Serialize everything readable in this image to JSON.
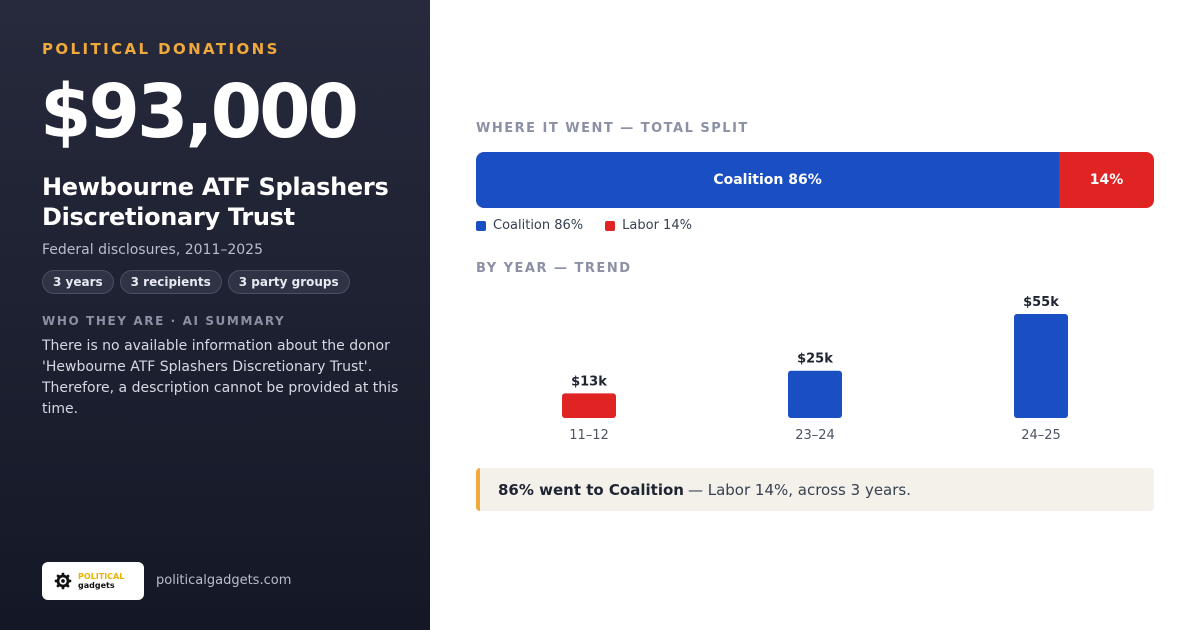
{
  "left": {
    "eyebrow": "POLITICAL DONATIONS",
    "amount": "$93,000",
    "donor_name": "Hewbourne ATF Splashers Discretionary Trust",
    "subtitle": "Federal disclosures, 2011–2025",
    "chips": [
      "3 years",
      "3 recipients",
      "3 party groups"
    ],
    "about_heading": "WHO THEY ARE · AI SUMMARY",
    "about_text": "There is no available information about the donor 'Hewbourne ATF Splashers Discretionary Trust'. Therefore, a description cannot be provided at this time.",
    "logo_line1": "POLITICAL",
    "logo_line2": "gadgets",
    "logo_icon": "gear-icon",
    "site": "politicalgadgets.com"
  },
  "split_heading": "WHERE IT WENT — TOTAL SPLIT",
  "trend_heading": "BY YEAR — TREND",
  "colors": {
    "coalition": "#1a4fc4",
    "labor": "#e02424",
    "accent": "#f2a93b"
  },
  "callout": {
    "strong": "86% went to Coalition",
    "rest": "— Labor 14%, across 3 years."
  },
  "chart_data": [
    {
      "type": "bar",
      "orientation": "horizontal-stacked",
      "series": [
        {
          "name": "Coalition",
          "value": 86,
          "bar_label": "Coalition 86%",
          "legend_label": "Coalition 86%",
          "color": "#1a4fc4"
        },
        {
          "name": "Labor",
          "value": 14,
          "bar_label": "14%",
          "legend_label": "Labor 14%",
          "color": "#e02424"
        }
      ]
    },
    {
      "type": "bar",
      "categories": [
        "11–12",
        "23–24",
        "24–25"
      ],
      "values": [
        13,
        25,
        55
      ],
      "labels": [
        "$13k",
        "$25k",
        "$55k"
      ],
      "colors": [
        "#e02424",
        "#1a4fc4",
        "#1a4fc4"
      ]
    }
  ]
}
